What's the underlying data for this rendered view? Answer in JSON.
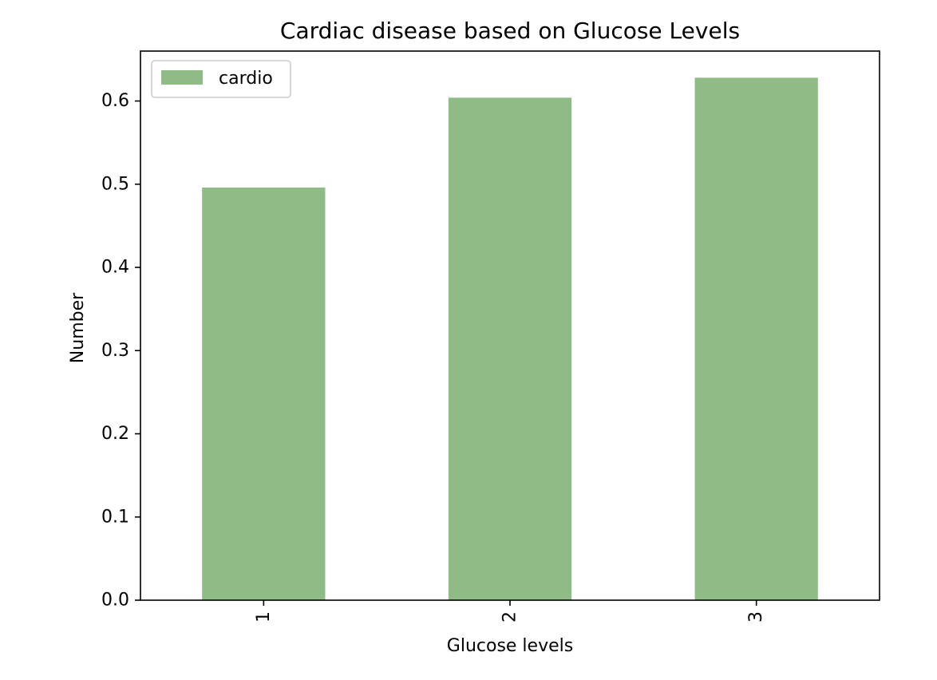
{
  "chart_data": {
    "type": "bar",
    "title": "Cardiac disease based on Glucose Levels",
    "xlabel": "Glucose levels",
    "ylabel": "Number",
    "categories": [
      "1",
      "2",
      "3"
    ],
    "series": [
      {
        "name": "cardio",
        "values": [
          0.496,
          0.604,
          0.628
        ],
        "color": "#8fbc86"
      }
    ],
    "ylim": [
      0,
      0.66
    ],
    "yticks": [
      0.0,
      0.1,
      0.2,
      0.3,
      0.4,
      0.5,
      0.6
    ],
    "ytick_labels": [
      "0.0",
      "0.1",
      "0.2",
      "0.3",
      "0.4",
      "0.5",
      "0.6"
    ],
    "xtick_rotation": "vertical",
    "legend_position": "top-left",
    "grid": false
  }
}
